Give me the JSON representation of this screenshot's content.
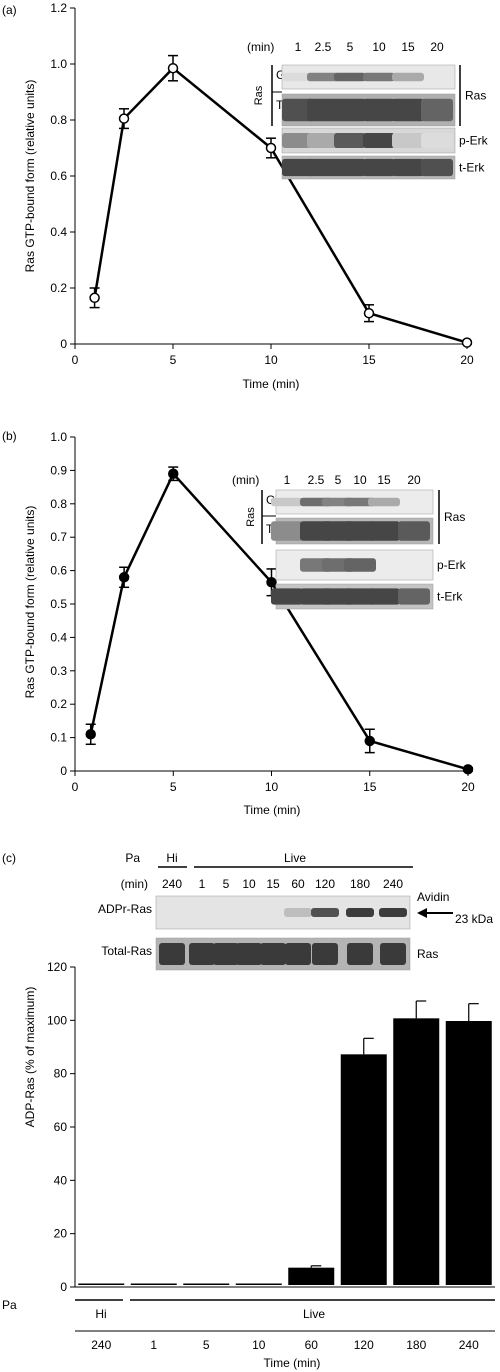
{
  "chart_data": [
    {
      "panel": "(a)",
      "type": "line",
      "xlabel": "Time (min)",
      "ylabel": "Ras GTP-bound form (relative units)",
      "xlim": [
        0,
        20
      ],
      "ylim": [
        0,
        1.2
      ],
      "xticks": [
        "0",
        "5",
        "10",
        "15",
        "20"
      ],
      "yticks": [
        "0",
        "0.2",
        "0.4",
        "0.6",
        "0.8",
        "1.0",
        "1.2"
      ],
      "marker": "open-circle",
      "x": [
        1,
        2.5,
        5,
        10,
        15,
        20
      ],
      "y": [
        0.165,
        0.805,
        0.985,
        0.7,
        0.11,
        0.005
      ],
      "err": [
        0.035,
        0.035,
        0.045,
        0.035,
        0.03,
        0.005
      ],
      "inset": {
        "min_label": "(min)",
        "lanes": [
          "1",
          "2.5",
          "5",
          "10",
          "15",
          "20"
        ],
        "side_label": "Ras",
        "rows": [
          "GTP",
          "Total",
          "p-Erk",
          "t-Erk"
        ],
        "right_label": "Ras"
      }
    },
    {
      "panel": "(b)",
      "type": "line",
      "xlabel": "Time (min)",
      "ylabel": "Ras GTP-bound form (relative units)",
      "xlim": [
        0,
        20
      ],
      "ylim": [
        0,
        1.0
      ],
      "xticks": [
        "0",
        "5",
        "10",
        "15",
        "20"
      ],
      "yticks": [
        "0",
        "0.1",
        "0.2",
        "0.3",
        "0.4",
        "0.5",
        "0.6",
        "0.7",
        "0.8",
        "0.9",
        "1.0"
      ],
      "marker": "filled-circle",
      "x": [
        0.8,
        2.5,
        5,
        10,
        15,
        20
      ],
      "y": [
        0.11,
        0.58,
        0.89,
        0.565,
        0.09,
        0.005
      ],
      "err": [
        0.03,
        0.03,
        0.02,
        0.04,
        0.035,
        0.005
      ],
      "inset": {
        "min_label": "(min)",
        "lanes": [
          "1",
          "2.5",
          "5",
          "10",
          "15",
          "20"
        ],
        "side_label": "Ras",
        "rows": [
          "GTP",
          "Total",
          "p-Erk",
          "t-Erk"
        ],
        "right_label": "Ras"
      }
    },
    {
      "panel": "(c)",
      "type": "bar",
      "xlabel": "Time (min)",
      "ylabel": "ADP-Ras (% of maximum)",
      "ylim": [
        0,
        120
      ],
      "yticks": [
        "0",
        "20",
        "40",
        "60",
        "80",
        "100",
        "120"
      ],
      "categories": [
        "240",
        "1",
        "5",
        "10",
        "60",
        "120",
        "180",
        "240"
      ],
      "values": [
        0.5,
        0.5,
        0.5,
        0.5,
        6.5,
        86.5,
        100,
        99
      ],
      "err": [
        0,
        0,
        0,
        0,
        0.7,
        6,
        6.5,
        6.5
      ],
      "pa_label": "Pa",
      "groups": [
        {
          "label": "Hi",
          "count": 1
        },
        {
          "label": "Live",
          "count": 7
        }
      ],
      "blot": {
        "pa_label": "Pa",
        "hi_label": "Hi",
        "live_label": "Live",
        "min_label": "(min)",
        "lanes": [
          "240",
          "1",
          "5",
          "10",
          "15",
          "60",
          "120",
          "180",
          "240"
        ],
        "row1_label": "ADPr-Ras",
        "row2_label": "Total-Ras",
        "avidin_label": "Avidin",
        "kda_label": "23 kDa",
        "ras_label": "Ras"
      }
    }
  ]
}
